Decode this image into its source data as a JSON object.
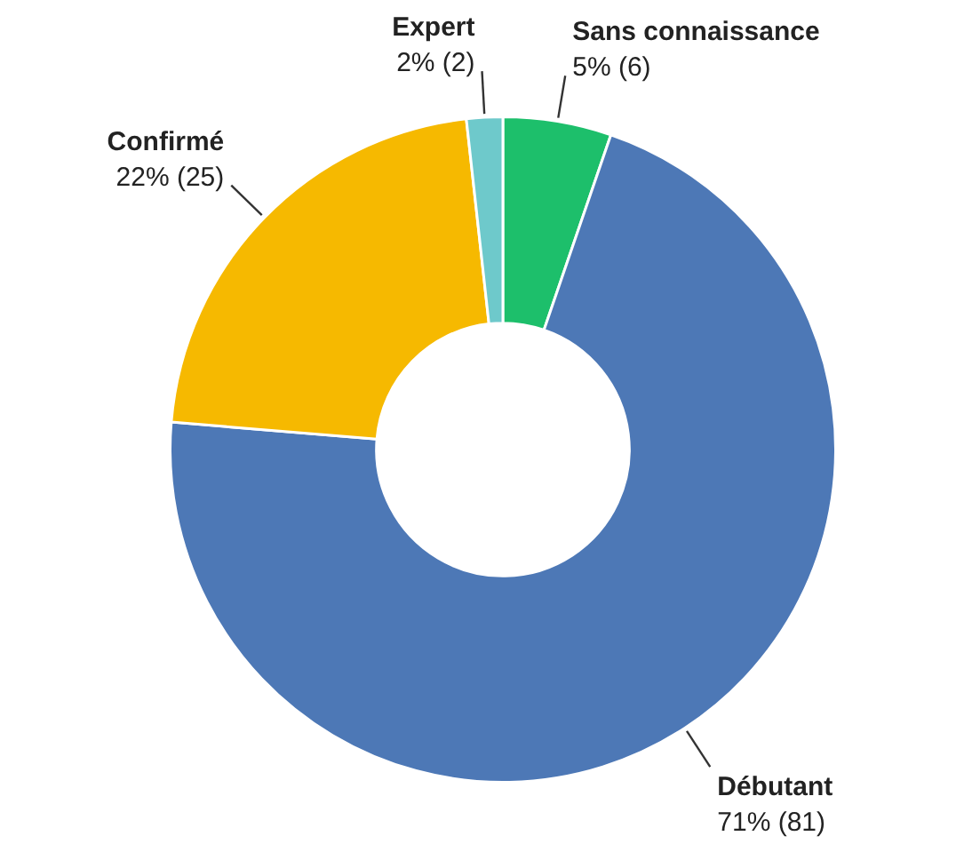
{
  "chart_data": {
    "type": "donut",
    "categories": [
      "Sans connaissance",
      "Débutant",
      "Confirmé",
      "Expert"
    ],
    "values": [
      6,
      81,
      25,
      2
    ],
    "value_labels": [
      "5% (6)",
      "71% (81)",
      "22% (25)",
      "2% (2)"
    ],
    "colors": [
      "#1dbf6b",
      "#4d78b6",
      "#f6b900",
      "#6ec9cb"
    ],
    "legend": false
  }
}
